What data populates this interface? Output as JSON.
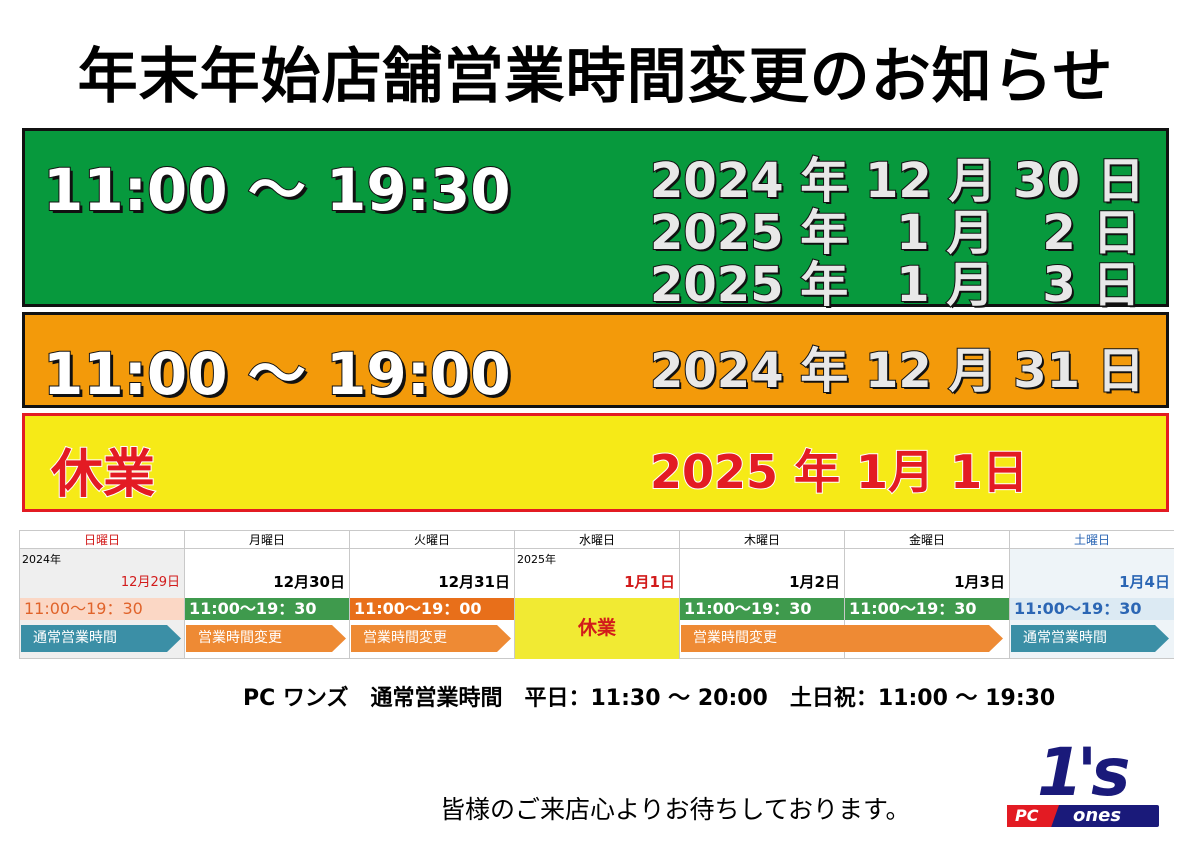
{
  "title": "年末年始店舗営業時間変更のお知らせ",
  "green_block": {
    "time": "11:00 〜 19:30",
    "dates": [
      "2024 年 12 月 30 日",
      "2025 年　1 月　2 日",
      "2025 年　1 月　3 日"
    ],
    "color": "#07993d"
  },
  "orange_block": {
    "time": "11:00 〜 19:00",
    "date": "2024 年 12 月 31 日",
    "color": "#f39a0a"
  },
  "yellow_block": {
    "label": "休業",
    "date": "2025 年  1月  1日",
    "color": "#f6ea17"
  },
  "calendar": {
    "weekdays": [
      "日曜日",
      "月曜日",
      "火曜日",
      "水曜日",
      "木曜日",
      "金曜日",
      "土曜日"
    ],
    "year_2024": "2024年",
    "year_2025": "2025年",
    "dates": [
      "12月29日",
      "12月30日",
      "12月31日",
      "1月1日",
      "1月2日",
      "1月3日",
      "1月4日"
    ],
    "hours": [
      "11:00〜19：30",
      "11:00〜19：30",
      "11:00〜19：00",
      "休業",
      "11:00〜19：30",
      "11:00〜19：30",
      "11:00〜19：30"
    ],
    "normal_label": "通常営業時間",
    "changed_label": "営業時間変更"
  },
  "footer_hours": "PC ワンズ　通常営業時間　平日：11:30 〜 20:00　土日祝：11:00 〜 19:30",
  "closing_message": "皆様のご来店心よりお待ちしております。",
  "logo": {
    "mark": "1's",
    "text_pc": "PC",
    "text_ones": "ones"
  }
}
